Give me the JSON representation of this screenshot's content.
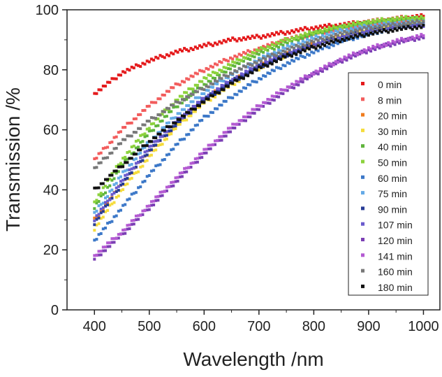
{
  "chart_data": {
    "type": "scatter",
    "title": "",
    "xlabel": "Wavelength /nm",
    "ylabel": "Transmission /%",
    "xlim": [
      350,
      1030
    ],
    "ylim": [
      0,
      100
    ],
    "xticks": [
      400,
      500,
      600,
      700,
      800,
      900,
      1000
    ],
    "yticks": [
      0,
      20,
      40,
      60,
      80,
      100
    ],
    "grid": false,
    "legend_position": "right",
    "x": [
      400,
      450,
      500,
      550,
      600,
      650,
      700,
      750,
      800,
      850,
      900,
      950,
      1000
    ],
    "series": [
      {
        "name": "0 min",
        "color": "#e41a1c",
        "values": [
          72,
          79,
          83,
          86,
          88,
          90,
          91,
          92.5,
          94,
          95,
          96,
          97,
          98
        ]
      },
      {
        "name": "8 min",
        "color": "#f25c5c",
        "values": [
          50,
          60,
          68,
          75,
          80,
          84,
          87,
          90,
          92,
          94,
          95.5,
          96.5,
          97
        ]
      },
      {
        "name": "20 min",
        "color": "#f07c1d",
        "values": [
          30,
          42,
          53,
          62,
          70,
          76,
          81,
          85,
          88.5,
          91.5,
          93.5,
          95,
          96
        ]
      },
      {
        "name": "30 min",
        "color": "#f5dc3c",
        "values": [
          27,
          40,
          51,
          61,
          69,
          75,
          80.5,
          85,
          88.5,
          91.5,
          93.5,
          95,
          96
        ]
      },
      {
        "name": "40 min",
        "color": "#5fb43c",
        "values": [
          34,
          48,
          59,
          68,
          75,
          81,
          85.5,
          89,
          92,
          94,
          95.5,
          96.5,
          97
        ]
      },
      {
        "name": "50 min",
        "color": "#8cd23c",
        "values": [
          36,
          50,
          61,
          70,
          77,
          82,
          86.5,
          90,
          92.5,
          94.5,
          96,
          97,
          97.5
        ]
      },
      {
        "name": "60 min",
        "color": "#3c78c8",
        "values": [
          23,
          34,
          45,
          55,
          64,
          71,
          77,
          82,
          86,
          89.5,
          92,
          94,
          95
        ]
      },
      {
        "name": "75 min",
        "color": "#64aae6",
        "values": [
          32,
          45,
          56,
          65,
          72.5,
          78.5,
          83.5,
          87.5,
          90.5,
          93,
          94.5,
          95.5,
          96
        ]
      },
      {
        "name": "90 min",
        "color": "#283c96",
        "values": [
          29,
          42,
          53,
          62,
          70,
          76,
          81,
          85,
          88.5,
          91,
          93,
          94.5,
          95.5
        ]
      },
      {
        "name": "107 min",
        "color": "#6a5acd",
        "values": [
          30,
          43,
          54,
          63,
          70.5,
          76.5,
          81.5,
          85.5,
          88.5,
          91,
          93,
          94.5,
          95
        ]
      },
      {
        "name": "120 min",
        "color": "#7b3fb4",
        "values": [
          17,
          25,
          34,
          43,
          52,
          60,
          67,
          73,
          78.5,
          83,
          86.5,
          89,
          91
        ]
      },
      {
        "name": "141 min",
        "color": "#b45ad2",
        "values": [
          18,
          26,
          35,
          44,
          53,
          61,
          68,
          74,
          79,
          83.5,
          87,
          89.5,
          91.5
        ]
      },
      {
        "name": "160 min",
        "color": "#787878",
        "values": [
          47,
          56,
          63,
          69,
          74,
          79,
          83,
          86.5,
          89.5,
          92,
          94,
          95,
          96
        ]
      },
      {
        "name": "180 min",
        "color": "#111111",
        "values": [
          40,
          48,
          56,
          63,
          69.5,
          75.5,
          80.5,
          84.5,
          87.5,
          90,
          92,
          93.5,
          94.5
        ]
      }
    ]
  }
}
